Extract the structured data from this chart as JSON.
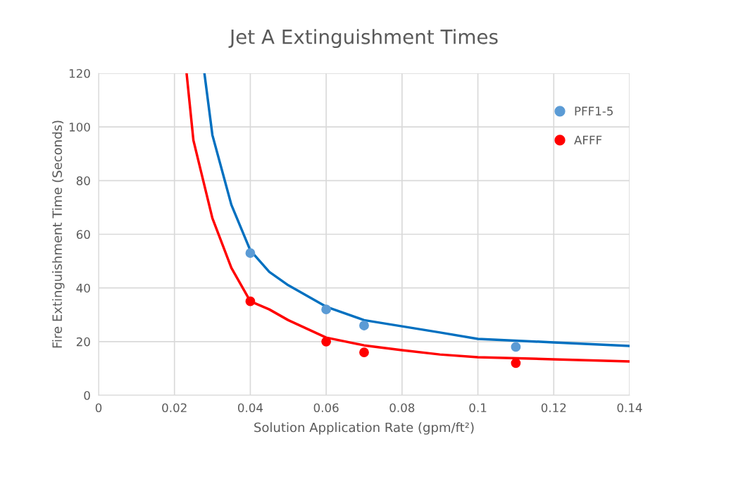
{
  "chart_data": {
    "type": "scatter",
    "title": "Jet A Extinguishment Times",
    "xlabel": "Solution Application Rate (gpm/ft²)",
    "ylabel": "Fire Extinguishment Time (Seconds)",
    "xlim": [
      0,
      0.14
    ],
    "ylim": [
      0,
      120
    ],
    "xticks": [
      0,
      0.02,
      0.04,
      0.06,
      0.08,
      0.1,
      0.12,
      0.14
    ],
    "yticks": [
      0,
      20,
      40,
      60,
      80,
      100,
      120
    ],
    "grid": true,
    "legend": "top right",
    "series": [
      {
        "name": "PFF1-5",
        "marker": "circle",
        "color": "#5b9bd5",
        "x": [
          0.04,
          0.06,
          0.07,
          0.11
        ],
        "values": [
          53,
          32,
          26,
          18
        ]
      },
      {
        "name": "AFFF",
        "marker": "circle",
        "color": "#ff0000",
        "x": [
          0.04,
          0.06,
          0.07,
          0.11
        ],
        "values": [
          35,
          20,
          16,
          12
        ]
      },
      {
        "type": "line",
        "marker": "none",
        "color": "#0070c0",
        "x": [
          0.0279,
          0.03,
          0.035,
          0.04,
          0.045,
          0.05,
          0.06,
          0.07,
          0.08,
          0.09,
          0.1,
          0.12,
          0.14
        ],
        "values": [
          120,
          97,
          71,
          54,
          46,
          41,
          33,
          28,
          25.7,
          23.4,
          21,
          19.7,
          18.4
        ]
      },
      {
        "type": "line",
        "marker": "none",
        "color": "#ff0000",
        "x": [
          0.0232,
          0.025,
          0.03,
          0.035,
          0.04,
          0.045,
          0.05,
          0.06,
          0.07,
          0.08,
          0.09,
          0.1,
          0.12,
          0.14
        ],
        "values": [
          120,
          95,
          66,
          47.5,
          35,
          32,
          28,
          21.5,
          18.6,
          16.8,
          15.2,
          14.2,
          13.4,
          12.6
        ]
      }
    ]
  }
}
